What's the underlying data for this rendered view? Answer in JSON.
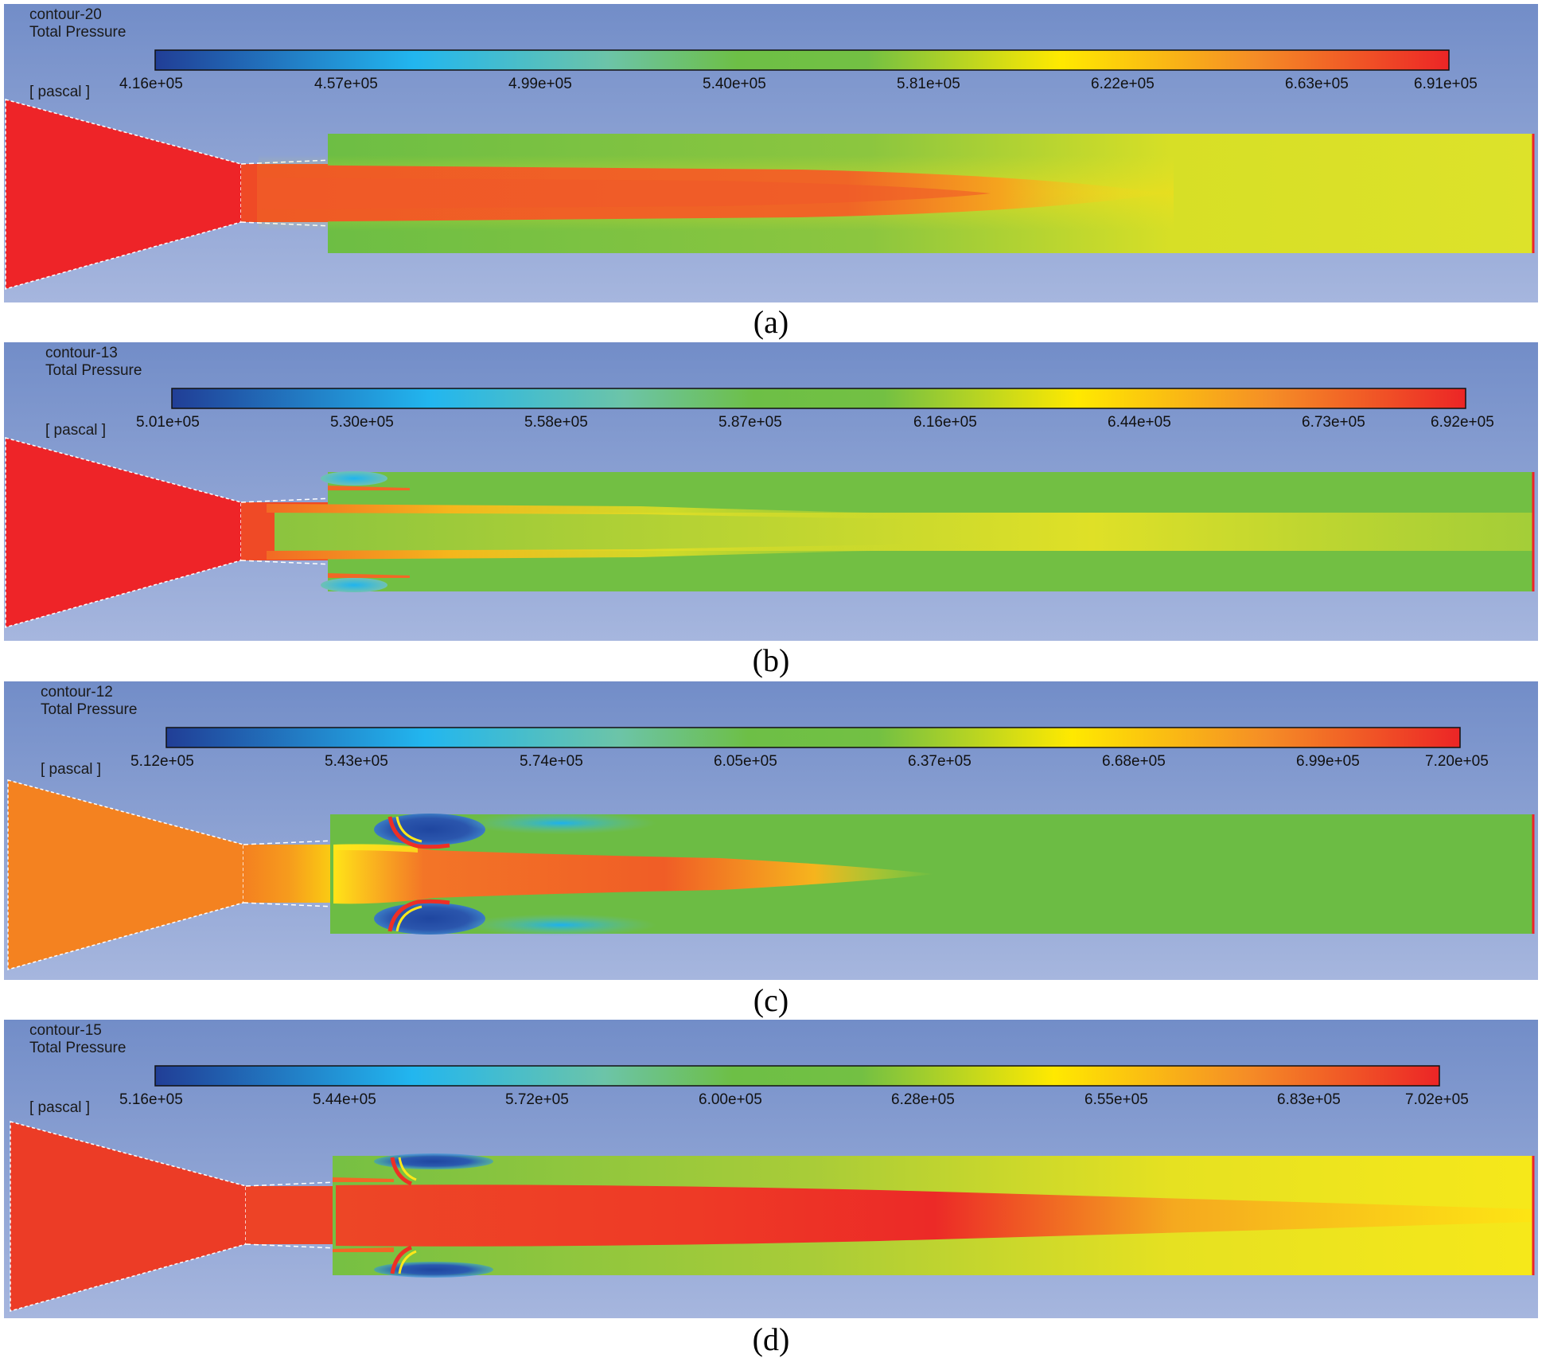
{
  "colormap": [
    "#1f3f99",
    "#20b4ee",
    "#6ac27f",
    "#6cbc3e",
    "#ffed00",
    "#f8a020",
    "#ee3023"
  ],
  "panels": [
    {
      "id": "a",
      "contour_name": "contour-20",
      "variable": "Total Pressure",
      "unit": "[ pascal ]",
      "caption": "(a)",
      "tick_labels": [
        "4.16e+05",
        "4.57e+05",
        "4.99e+05",
        "5.40e+05",
        "5.81e+05",
        "6.22e+05",
        "6.63e+05",
        "6.91e+05"
      ],
      "nozzle_color": "#ee2428",
      "flow_pattern": "long-core",
      "pipe_background": "#70bf43",
      "pipe_end_color": "#d8e027"
    },
    {
      "id": "b",
      "contour_name": "contour-13",
      "variable": "Total Pressure",
      "unit": "[ pascal ]",
      "caption": "(b)",
      "tick_labels": [
        "5.01e+05",
        "5.30e+05",
        "5.58e+05",
        "5.87e+05",
        "6.16e+05",
        "6.44e+05",
        "6.73e+05",
        "6.92e+05"
      ],
      "nozzle_color": "#ee2428",
      "flow_pattern": "split-jet",
      "pipe_background": "#70bf43",
      "pipe_end_color": "#8cc63f"
    },
    {
      "id": "c",
      "contour_name": "contour-12",
      "variable": "Total Pressure",
      "unit": "[ pascal ]",
      "caption": "(c)",
      "tick_labels": [
        "5.12e+05",
        "5.43e+05",
        "5.74e+05",
        "6.05e+05",
        "6.37e+05",
        "6.68e+05",
        "6.99e+05",
        "7.20e+05"
      ],
      "nozzle_color": "#f48220",
      "flow_pattern": "vortex-short",
      "pipe_background": "#6cbc44",
      "pipe_end_color": "#6cbc44"
    },
    {
      "id": "d",
      "contour_name": "contour-15",
      "variable": "Total Pressure",
      "unit": "[ pascal ]",
      "caption": "(d)",
      "tick_labels": [
        "5.16e+05",
        "5.44e+05",
        "5.72e+05",
        "6.00e+05",
        "6.28e+05",
        "6.55e+05",
        "6.83e+05",
        "7.02e+05"
      ],
      "nozzle_color": "#ec3c26",
      "flow_pattern": "vortex-long",
      "pipe_background": "#7cc242",
      "pipe_end_color": "#f7e61a"
    }
  ]
}
